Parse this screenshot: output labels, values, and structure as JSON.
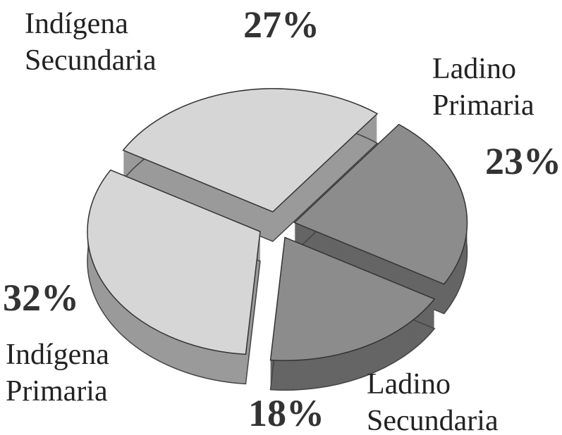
{
  "chart_data": {
    "type": "pie",
    "categories": [
      "Indígena Secundaria",
      "Ladino Primaria",
      "Ladino Secundaria",
      "Indígena Primaria"
    ],
    "values": [
      27,
      23,
      18,
      32
    ],
    "value_labels": [
      "27%",
      "23%",
      "18%",
      "32%"
    ],
    "colors": [
      "#d6d6d6",
      "#8c8c8c",
      "#8c8c8c",
      "#d6d6d6"
    ]
  }
}
